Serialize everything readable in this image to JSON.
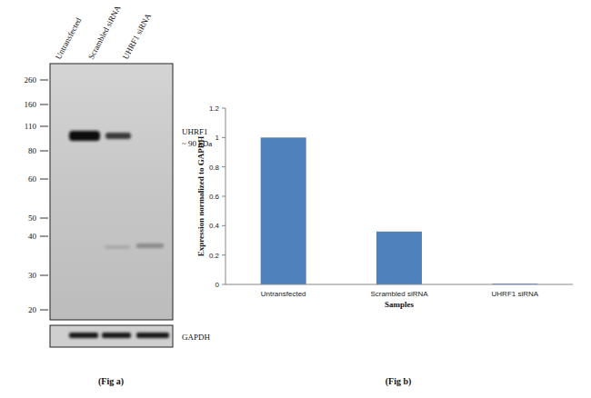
{
  "chart_data": {
    "type": "bar",
    "categories": [
      "Untransfected",
      "Scrambled siRNA",
      "UHRF1 siRNA"
    ],
    "values": [
      1.0,
      0.36,
      0.005
    ],
    "color": "#4f81bd",
    "ylim": [
      0,
      1.2
    ],
    "yticks": [
      0,
      0.2,
      0.4,
      0.6,
      0.8,
      1,
      1.2
    ],
    "grid": false,
    "x_label": "Samples",
    "y_label": "Expression normalized to GAPDH",
    "caption": "(Fig b)"
  },
  "figure_a": {
    "lanes": [
      "Untransfected",
      "Scrambled siRNA",
      "UHRF1 siRNA"
    ],
    "markers": [
      260,
      160,
      110,
      80,
      60,
      50,
      40,
      30,
      20
    ],
    "target": "UHRF1",
    "target_size": "~ 90 kDa",
    "loading_control": "GAPDH",
    "caption": "(Fig a)"
  }
}
